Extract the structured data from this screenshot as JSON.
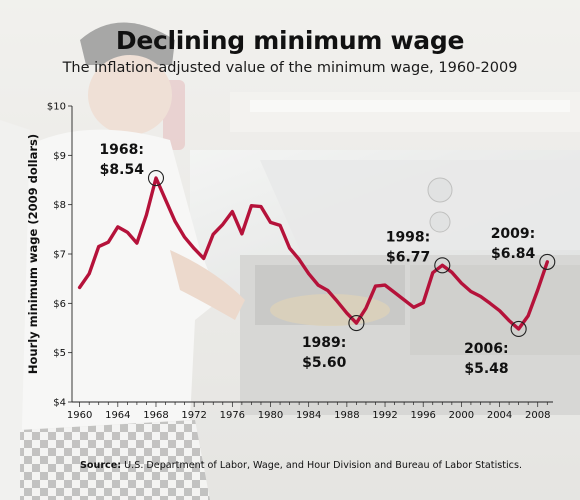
{
  "title": "Declining minimum wage",
  "subtitle": "The inflation-adjusted value of the minimum wage, 1960-2009",
  "source": {
    "label": "Source:",
    "text": "U.S. Department of Labor, Wage, and Hour Division and Bureau of Labor Statistics."
  },
  "colors": {
    "line": "#b5123a",
    "text": "#111111",
    "axis": "#222222"
  },
  "chart_data": {
    "type": "line",
    "title": "Declining minimum wage",
    "subtitle": "The inflation-adjusted value of the minimum wage, 1960-2009",
    "xlabel": "",
    "ylabel": "Hourly minimum wage (2009 dollars)",
    "xlim": [
      1959.2,
      2009.6
    ],
    "ylim": [
      4,
      10
    ],
    "grid": false,
    "x_ticks": [
      1960,
      1964,
      1968,
      1972,
      1976,
      1980,
      1984,
      1988,
      1992,
      1996,
      2000,
      2004,
      2008
    ],
    "y_ticks": [
      {
        "value": 4,
        "label": "$4"
      },
      {
        "value": 5,
        "label": "$5"
      },
      {
        "value": 6,
        "label": "$6"
      },
      {
        "value": 7,
        "label": "$7"
      },
      {
        "value": 8,
        "label": "$8"
      },
      {
        "value": 9,
        "label": "$9"
      },
      {
        "value": 10,
        "label": "$10"
      }
    ],
    "series": [
      {
        "x": [
          1960,
          1961,
          1962,
          1963,
          1964,
          1965,
          1966,
          1967,
          1968,
          1969,
          1970,
          1971,
          1972,
          1973,
          1974,
          1975,
          1976,
          1977,
          1978,
          1979,
          1980,
          1981,
          1982,
          1983,
          1984,
          1985,
          1986,
          1987,
          1988,
          1989,
          1990,
          1991,
          1992,
          1993,
          1994,
          1995,
          1996,
          1997,
          1998,
          1999,
          2000,
          2001,
          2002,
          2003,
          2004,
          2005,
          2006,
          2007,
          2008,
          2009
        ],
        "values": [
          6.32,
          6.6,
          7.15,
          7.24,
          7.55,
          7.44,
          7.22,
          7.79,
          8.54,
          8.1,
          7.66,
          7.34,
          7.11,
          6.91,
          7.4,
          7.6,
          7.86,
          7.41,
          7.98,
          7.96,
          7.64,
          7.58,
          7.12,
          6.89,
          6.6,
          6.37,
          6.26,
          6.04,
          5.8,
          5.6,
          5.9,
          6.35,
          6.37,
          6.22,
          6.07,
          5.92,
          6.01,
          6.62,
          6.77,
          6.63,
          6.41,
          6.24,
          6.14,
          6.0,
          5.85,
          5.65,
          5.48,
          5.75,
          6.27,
          6.84
        ]
      }
    ],
    "annotations": [
      {
        "x": 1968,
        "y": 8.54,
        "label_year": "1968:",
        "label_value": "$8.54",
        "position": "upper-left"
      },
      {
        "x": 1989,
        "y": 5.6,
        "label_year": "1989:",
        "label_value": "$5.60",
        "position": "lower-left"
      },
      {
        "x": 1998,
        "y": 6.77,
        "label_year": "1998:",
        "label_value": "$6.77",
        "position": "upper-left"
      },
      {
        "x": 2006,
        "y": 5.48,
        "label_year": "2006:",
        "label_value": "$5.48",
        "position": "lower-left"
      },
      {
        "x": 2009,
        "y": 6.84,
        "label_year": "2009:",
        "label_value": "$6.84",
        "position": "upper-left"
      }
    ]
  }
}
